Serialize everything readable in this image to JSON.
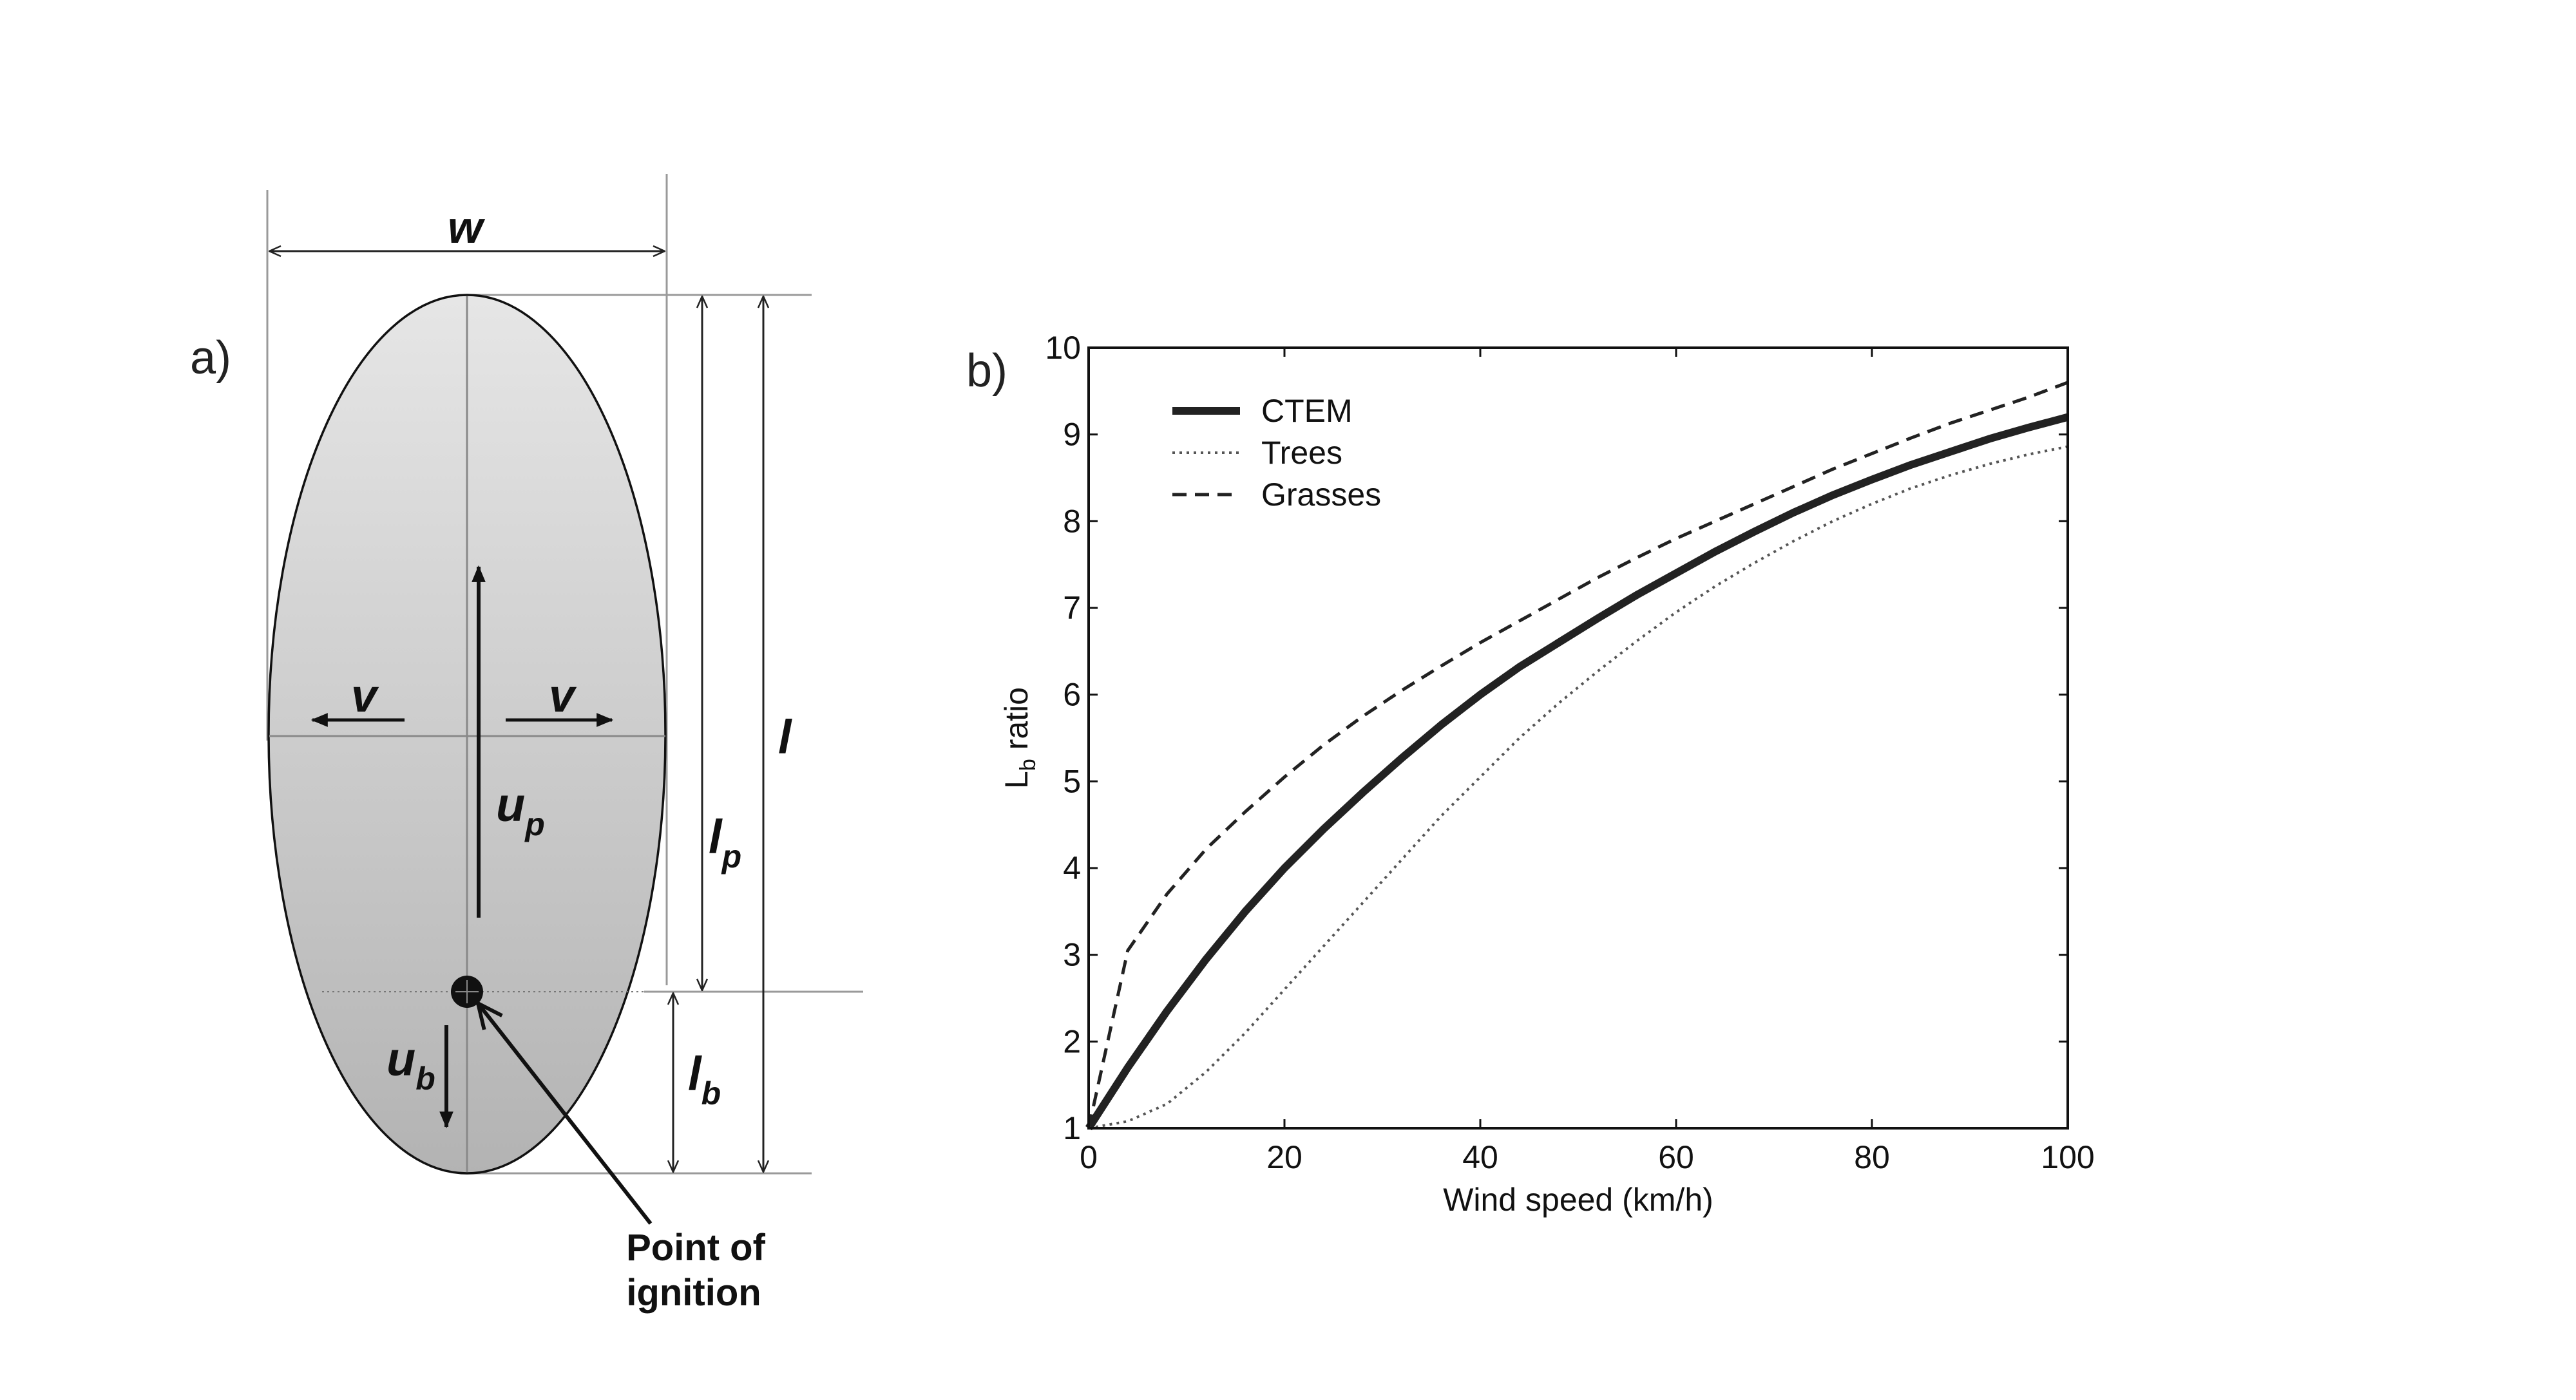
{
  "panel_a": {
    "label": "a)",
    "w_label": "w",
    "l_label": "l",
    "lp_main": "l",
    "lp_sub": "p",
    "lb_main": "l",
    "lb_sub": "b",
    "up_main": "u",
    "up_sub": "p",
    "ub_main": "u",
    "ub_sub": "b",
    "v_left": "v",
    "v_right": "v",
    "ignition_line1": "Point of",
    "ignition_line2": "ignition"
  },
  "panel_b": {
    "label": "b)"
  },
  "chart_data": {
    "type": "line",
    "title": "",
    "xlabel": "Wind speed (km/h)",
    "ylabel_main": "L",
    "ylabel_sub": "b",
    "ylabel_rest": " ratio",
    "xlim": [
      0,
      100
    ],
    "ylim": [
      1,
      10
    ],
    "xticks": [
      "0",
      "20",
      "40",
      "60",
      "80",
      "100"
    ],
    "yticks": [
      "1",
      "2",
      "3",
      "4",
      "5",
      "6",
      "7",
      "8",
      "9",
      "10"
    ],
    "legend_position": "top-left",
    "series": [
      {
        "name": "CTEM",
        "style": "solid-thick",
        "color": "#222222",
        "x": [
          0,
          4,
          8,
          12,
          16,
          20,
          24,
          28,
          32,
          36,
          40,
          44,
          48,
          52,
          56,
          60,
          64,
          68,
          72,
          76,
          80,
          84,
          88,
          92,
          96,
          100
        ],
        "y": [
          1.0,
          1.7,
          2.35,
          2.95,
          3.5,
          4.0,
          4.45,
          4.87,
          5.27,
          5.65,
          6.0,
          6.32,
          6.6,
          6.88,
          7.15,
          7.4,
          7.65,
          7.88,
          8.1,
          8.3,
          8.48,
          8.65,
          8.8,
          8.95,
          9.08,
          9.2
        ]
      },
      {
        "name": "Trees",
        "style": "dotted",
        "color": "#555555",
        "x": [
          0,
          4,
          8,
          12,
          16,
          20,
          24,
          28,
          32,
          36,
          40,
          44,
          48,
          52,
          56,
          60,
          64,
          68,
          72,
          76,
          80,
          84,
          88,
          92,
          96,
          100
        ],
        "y": [
          1.0,
          1.08,
          1.28,
          1.65,
          2.1,
          2.6,
          3.1,
          3.6,
          4.1,
          4.6,
          5.05,
          5.5,
          5.9,
          6.27,
          6.62,
          6.95,
          7.25,
          7.52,
          7.77,
          8.0,
          8.2,
          8.38,
          8.53,
          8.66,
          8.77,
          8.86
        ]
      },
      {
        "name": "Grasses",
        "style": "dashed",
        "color": "#222222",
        "x": [
          0,
          4,
          8,
          12,
          16,
          20,
          24,
          28,
          32,
          36,
          40,
          44,
          48,
          52,
          56,
          60,
          64,
          68,
          72,
          76,
          80,
          84,
          88,
          92,
          96,
          100
        ],
        "y": [
          1.0,
          3.05,
          3.7,
          4.22,
          4.65,
          5.05,
          5.42,
          5.75,
          6.05,
          6.33,
          6.6,
          6.85,
          7.1,
          7.35,
          7.58,
          7.8,
          8.0,
          8.2,
          8.4,
          8.6,
          8.78,
          8.96,
          9.13,
          9.28,
          9.43,
          9.6
        ]
      }
    ]
  }
}
